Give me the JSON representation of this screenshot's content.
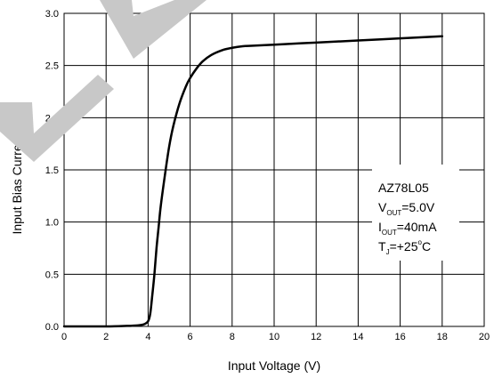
{
  "chart_data": {
    "type": "line",
    "xlabel": "Input Voltage (V)",
    "ylabel": "Input Bias Current (mA)",
    "xlim": [
      0,
      20
    ],
    "ylim": [
      0.0,
      3.0
    ],
    "xticks": [
      "0",
      "2",
      "4",
      "6",
      "8",
      "10",
      "12",
      "14",
      "16",
      "18",
      "20"
    ],
    "yticks": [
      "0.0",
      "0.5",
      "1.0",
      "1.5",
      "2.0",
      "2.5",
      "3.0"
    ],
    "grid": true,
    "series": [
      {
        "x": [
          0,
          2,
          3,
          3.5,
          3.8,
          4.0,
          4.1,
          4.2,
          4.3,
          4.4,
          4.5,
          4.6,
          4.8,
          5.0,
          5.2,
          5.5,
          5.8,
          6.0,
          6.3,
          6.6,
          7.0,
          7.5,
          8.0,
          8.5,
          9.0,
          10,
          11,
          12,
          14,
          16,
          18
        ],
        "y": [
          0.0,
          0.0,
          0.005,
          0.01,
          0.02,
          0.05,
          0.12,
          0.3,
          0.5,
          0.75,
          0.95,
          1.15,
          1.45,
          1.72,
          1.92,
          2.14,
          2.3,
          2.38,
          2.47,
          2.54,
          2.6,
          2.645,
          2.67,
          2.685,
          2.69,
          2.7,
          2.71,
          2.72,
          2.74,
          2.76,
          2.78
        ],
        "color": "#000000"
      }
    ],
    "annotation": {
      "device": "AZ78L05",
      "vout_main": "V",
      "vout_sub": "OUT",
      "vout_value": "=5.0V",
      "iout_main": "I",
      "iout_sub": "OUT",
      "iout_value": "=40mA",
      "tj_main": "T",
      "tj_sub": "J",
      "tj_value_a": "=+25",
      "tj_value_deg": "o",
      "tj_value_b": "C"
    }
  },
  "watermark": {
    "color": "#c8c8c8"
  }
}
